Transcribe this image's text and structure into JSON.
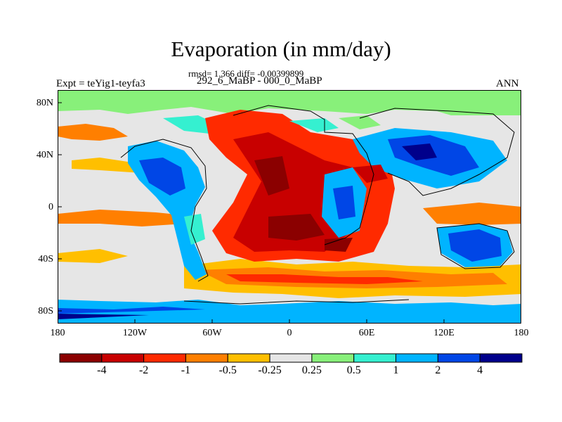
{
  "title": "Evaporation (in mm/day)",
  "stats": "rmsd= 1.366 diff= -0.00399899",
  "subtitle": "292_6_MaBP - 000_0_MaBP",
  "expt": "Expt = teYig1-teyfa3",
  "season": "ANN",
  "lat_labels": [
    "80N",
    "40N",
    "0",
    "40S",
    "80S"
  ],
  "lon_labels": [
    "180",
    "120W",
    "60W",
    "0",
    "60E",
    "120E",
    "180"
  ],
  "colorbar": {
    "labels": [
      "-4",
      "-2",
      "-1",
      "-0.5",
      "-0.25",
      "0.25",
      "0.5",
      "1",
      "2",
      "4"
    ],
    "colors": [
      "#8b0000",
      "#c80000",
      "#ff2a00",
      "#ff7f00",
      "#ffbf00",
      "#e6e6e6",
      "#88f07a",
      "#35f0d0",
      "#00b4ff",
      "#0046e6",
      "#00008b"
    ]
  }
}
